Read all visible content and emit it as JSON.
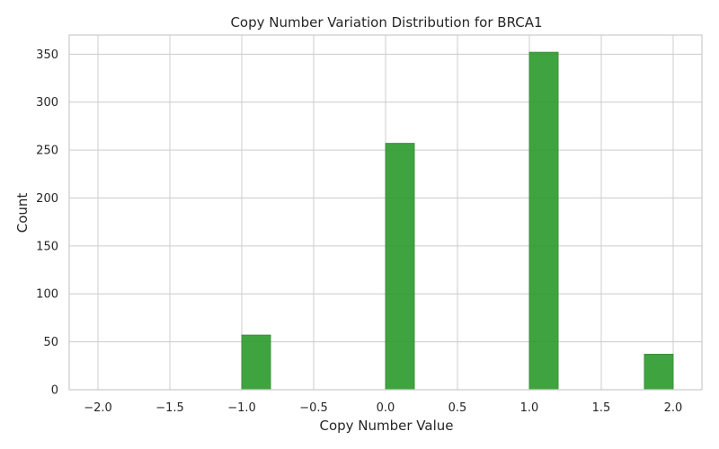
{
  "chart_data": {
    "type": "bar",
    "title": "Copy Number Variation Distribution for BRCA1",
    "xlabel": "Copy Number Value",
    "ylabel": "Count",
    "xlim": [
      -2.2,
      2.2
    ],
    "ylim": [
      0,
      370
    ],
    "x_ticks": [
      "−2.0",
      "−1.5",
      "−1.0",
      "−0.5",
      "0.0",
      "0.5",
      "1.0",
      "1.5",
      "2.0"
    ],
    "x_tick_values": [
      -2.0,
      -1.5,
      -1.0,
      -0.5,
      0.0,
      0.5,
      1.0,
      1.5,
      2.0
    ],
    "y_ticks": [
      "0",
      "50",
      "100",
      "150",
      "200",
      "250",
      "300",
      "350"
    ],
    "y_tick_values": [
      0,
      50,
      100,
      150,
      200,
      250,
      300,
      350
    ],
    "bins": [
      {
        "x0": -1.0,
        "x1": -0.8,
        "count": 57
      },
      {
        "x0": 0.0,
        "x1": 0.2,
        "count": 257
      },
      {
        "x0": 1.0,
        "x1": 1.2,
        "count": 352
      },
      {
        "x0": 1.8,
        "x1": 2.0,
        "count": 37
      }
    ],
    "bar_color": "#2a9a2a",
    "bar_edge_color": "#3f8f3f",
    "grid": true,
    "grid_color": "#cccccc",
    "spine_color": "#cccccc"
  }
}
